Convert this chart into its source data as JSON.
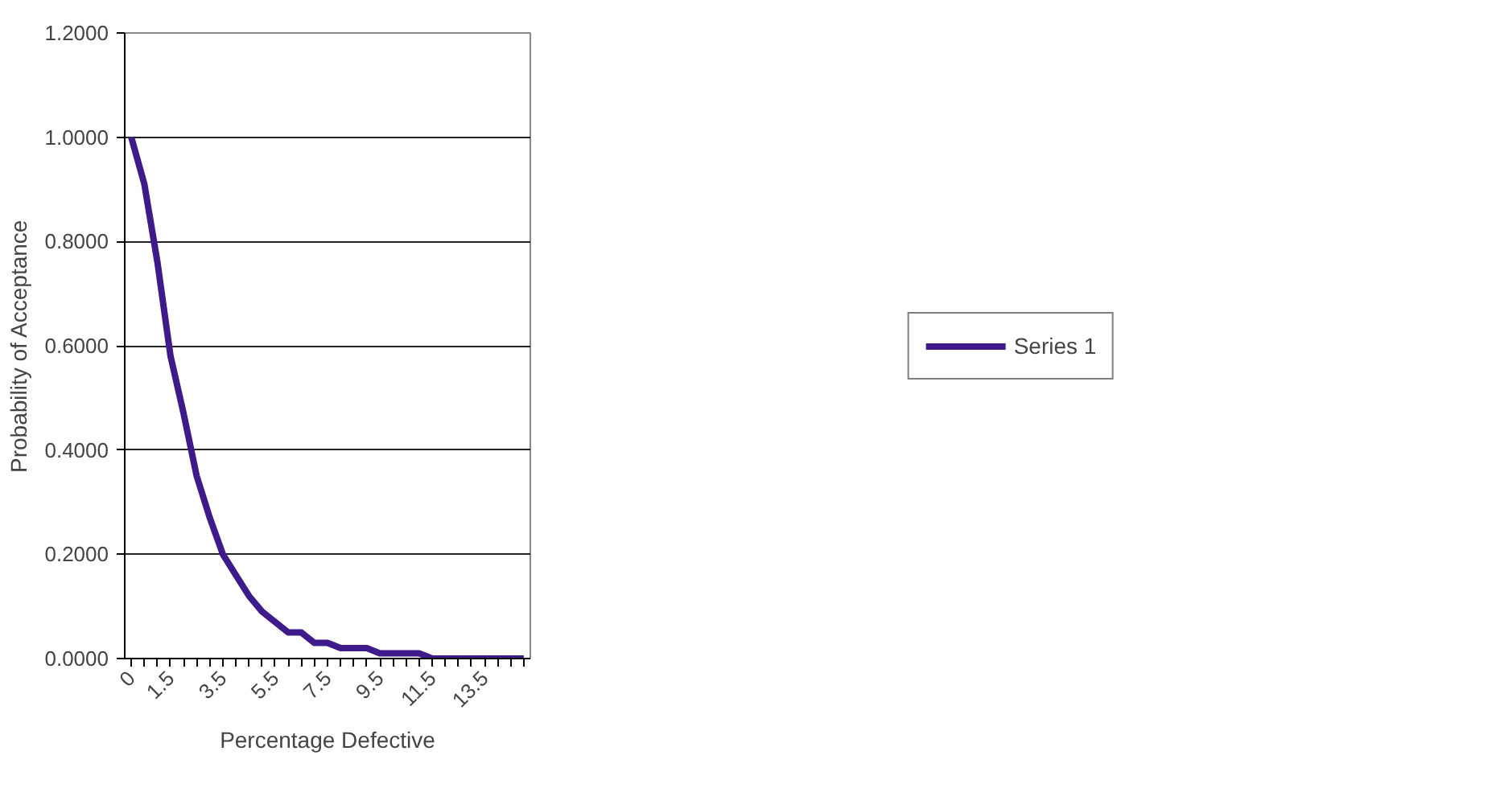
{
  "chart_data": {
    "type": "line",
    "xlabel": "Percentage Defective",
    "ylabel": "Probability of Acceptance",
    "categories": [
      "0",
      null,
      null,
      "1.5",
      null,
      null,
      null,
      "3.5",
      null,
      null,
      null,
      "5.5",
      null,
      null,
      null,
      "7.5",
      null,
      null,
      null,
      "9.5",
      null,
      null,
      null,
      "11.5",
      null,
      null,
      null,
      "13.5",
      null,
      null,
      null
    ],
    "series": [
      {
        "name": "Series 1",
        "color": "#3f1a8a",
        "values": [
          1.0,
          0.91,
          0.76,
          0.58,
          0.47,
          0.35,
          0.27,
          0.2,
          0.16,
          0.12,
          0.09,
          0.07,
          0.05,
          0.05,
          0.03,
          0.03,
          0.02,
          0.02,
          0.02,
          0.01,
          0.01,
          0.01,
          0.01,
          0.0,
          0.0,
          0.0,
          0.0,
          0.0,
          0.0,
          0.0,
          0.0
        ]
      }
    ],
    "ylim": [
      0,
      1.2
    ],
    "yticks": [
      {
        "value": 0,
        "label": "0.0000"
      },
      {
        "value": 0.2,
        "label": "0.2000"
      },
      {
        "value": 0.4,
        "label": "0.4000"
      },
      {
        "value": 0.6,
        "label": "0.6000"
      },
      {
        "value": 0.8,
        "label": "0.8000"
      },
      {
        "value": 1.0,
        "label": "1.0000"
      },
      {
        "value": 1.2,
        "label": "1.2000"
      }
    ],
    "grid": "y",
    "legend": "right",
    "marker": "none",
    "line_style": "solid"
  }
}
